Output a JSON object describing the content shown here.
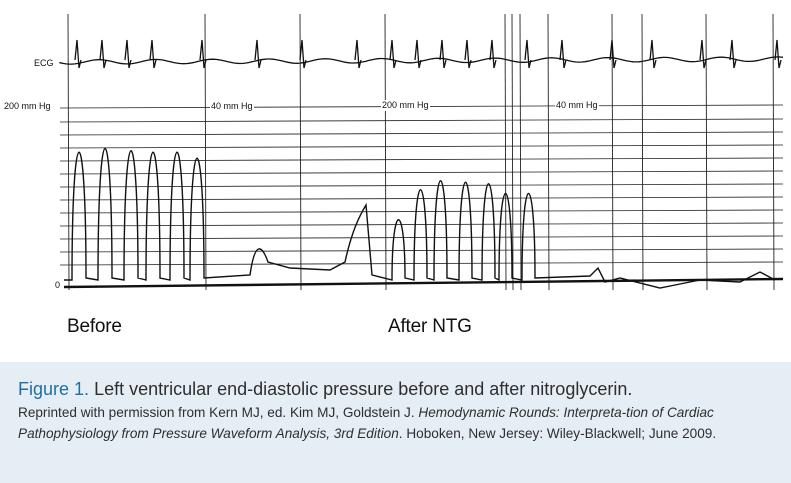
{
  "figure": {
    "trace_labels": {
      "ecg": "ECG",
      "scale_200_left": "200 mm Hg",
      "scale_40_first": "40 mm Hg",
      "scale_200_mid": "200 mm Hg",
      "scale_40_second": "40 mm Hg",
      "zero": "0"
    },
    "panel_labels": {
      "before": "Before",
      "after": "After NTG"
    }
  },
  "caption": {
    "figure_number": "Figure 1.",
    "title": "Left ventricular end-diastolic pressure before and after nitroglycerin.",
    "credit_prefix": "Reprinted with permission from Kern MJ, ed. Kim MJ, Goldstein J.",
    "book_title": "Hemodynamic Rounds: Interpreta-tion of Cardiac Pathophysiology from Pressure Waveform Analysis, 3rd Edition",
    "credit_suffix": ". Hoboken, New Jersey: Wiley-Blackwell; June 2009."
  },
  "colors": {
    "caption_background": "#e6eef5",
    "figure_number": "#1f6fa3",
    "caption_text": "#2e2e2e",
    "trace_ink": "#111111"
  }
}
